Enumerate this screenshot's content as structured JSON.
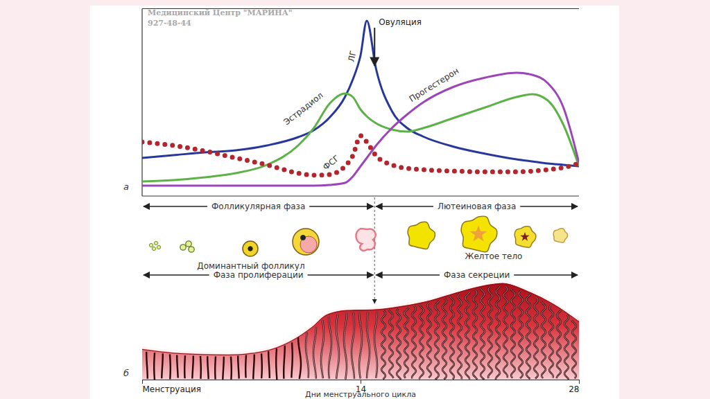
{
  "chart_data": {
    "type": "line",
    "x": [
      0,
      2,
      4,
      6,
      8,
      10,
      11,
      12,
      13,
      13.5,
      14,
      14.4,
      15,
      16,
      17,
      18,
      20,
      22,
      24,
      25,
      26,
      27,
      28
    ],
    "xlim": [
      0,
      28
    ],
    "xticks": [
      {
        "value": 0,
        "label": "Менструация"
      },
      14,
      28
    ],
    "x_label": "Дни менструального цикла",
    "ylim": [
      0,
      105
    ],
    "tick_labels": "x",
    "series": [
      {
        "name": "ЛГ",
        "color": "#27389a",
        "values": [
          18.8,
          20.4,
          22,
          23.2,
          26,
          30.8,
          34.8,
          42,
          54,
          64,
          78,
          98,
          70,
          46,
          36,
          31.2,
          25.2,
          21.2,
          18,
          16.8,
          15.6,
          14.8,
          14
        ]
      },
      {
        "name": "Эстрадиол",
        "color": "#5cb247",
        "values": [
          5.2,
          6,
          7.6,
          10,
          14.8,
          26,
          36,
          50,
          56,
          54,
          46.8,
          42.8,
          38.8,
          35.2,
          34,
          36,
          42,
          48,
          54,
          55.6,
          52,
          38,
          14
        ]
      },
      {
        "name": "Прогестерон",
        "color": "#9c45b8",
        "values": [
          2.8,
          2.8,
          2.8,
          2.8,
          2.8,
          2.8,
          2.8,
          3.2,
          4.4,
          8,
          14,
          18.8,
          26,
          36,
          44,
          50.8,
          60,
          65.2,
          68,
          66.8,
          62,
          48,
          16
        ]
      },
      {
        "name": "ФСГ",
        "color": "#b3262d",
        "line_style": "dotted",
        "values": [
          28,
          26,
          22.8,
          18.8,
          14.8,
          10,
          8.8,
          9.2,
          14,
          20,
          31.6,
          28,
          20,
          14.8,
          12.8,
          12,
          11.2,
          10.8,
          10.8,
          11.2,
          12,
          13.2,
          15.6
        ]
      }
    ],
    "annotations": [
      {
        "text": "Овуляция",
        "x": 14.9
      }
    ],
    "panel_label": "а"
  },
  "watermark": {
    "title": "Медицинский Центр \"МАРИНА\"",
    "phone": "927-48-44"
  },
  "ovary_phases": [
    {
      "label": "Фолликулярная фаза",
      "start": 0,
      "end": 14.9
    },
    {
      "label": "Лютеиновая фаза",
      "start": 14.9,
      "end": 28
    }
  ],
  "endometrium_phases": [
    {
      "label": "Фаза пролиферации",
      "start": 0,
      "end": 14.9
    },
    {
      "label": "Фаза секреции",
      "start": 14.9,
      "end": 28
    }
  ],
  "ovary_labels": [
    "Доминантный фолликул",
    "Желтое тело"
  ],
  "endometrium_panel_label": "б"
}
